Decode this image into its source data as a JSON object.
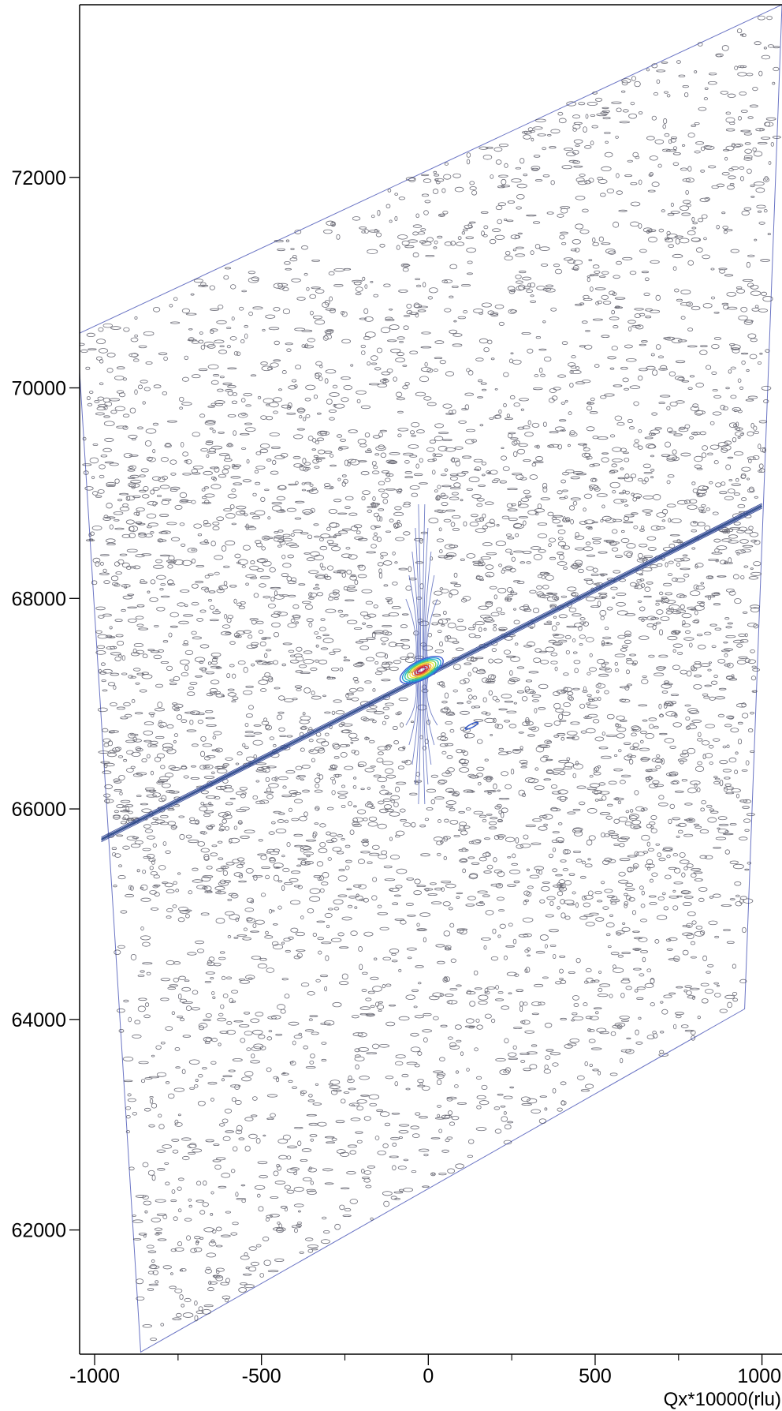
{
  "chart_data": {
    "type": "contour",
    "title": "",
    "xlabel": "Qx*10000(rlu)",
    "ylabel": "",
    "xlim": [
      -1045,
      1060
    ],
    "ylim": [
      60820,
      73640
    ],
    "x_ticks": [
      -1000,
      -500,
      0,
      500,
      1000
    ],
    "x_minor_ticks": [
      -750,
      -250,
      250,
      750
    ],
    "y_ticks": [
      62000,
      64000,
      66000,
      68000,
      70000,
      72000
    ],
    "scan_region": [
      [
        -1045,
        70520
      ],
      [
        -1045,
        70150
      ],
      [
        -862,
        60840
      ],
      [
        948,
        64100
      ],
      [
        1060,
        73640
      ]
    ],
    "substrate_peak": {
      "x": -20,
      "y": 67320
    },
    "analyzer_streak": {
      "from": [
        -980,
        65710
      ],
      "to": [
        1000,
        68880
      ]
    },
    "secondary_feature": {
      "x": 130,
      "y": 66790
    },
    "colors": {
      "boundary": "#6a74c4",
      "low_contour": "#3a3a48",
      "streak": "#2a4a88",
      "peak_levels": [
        "#3d5bd0",
        "#1f9ad6",
        "#22c0b6",
        "#7ed24c",
        "#f2e53a",
        "#f39a2a",
        "#e53a2a",
        "#b21d4a"
      ]
    }
  }
}
